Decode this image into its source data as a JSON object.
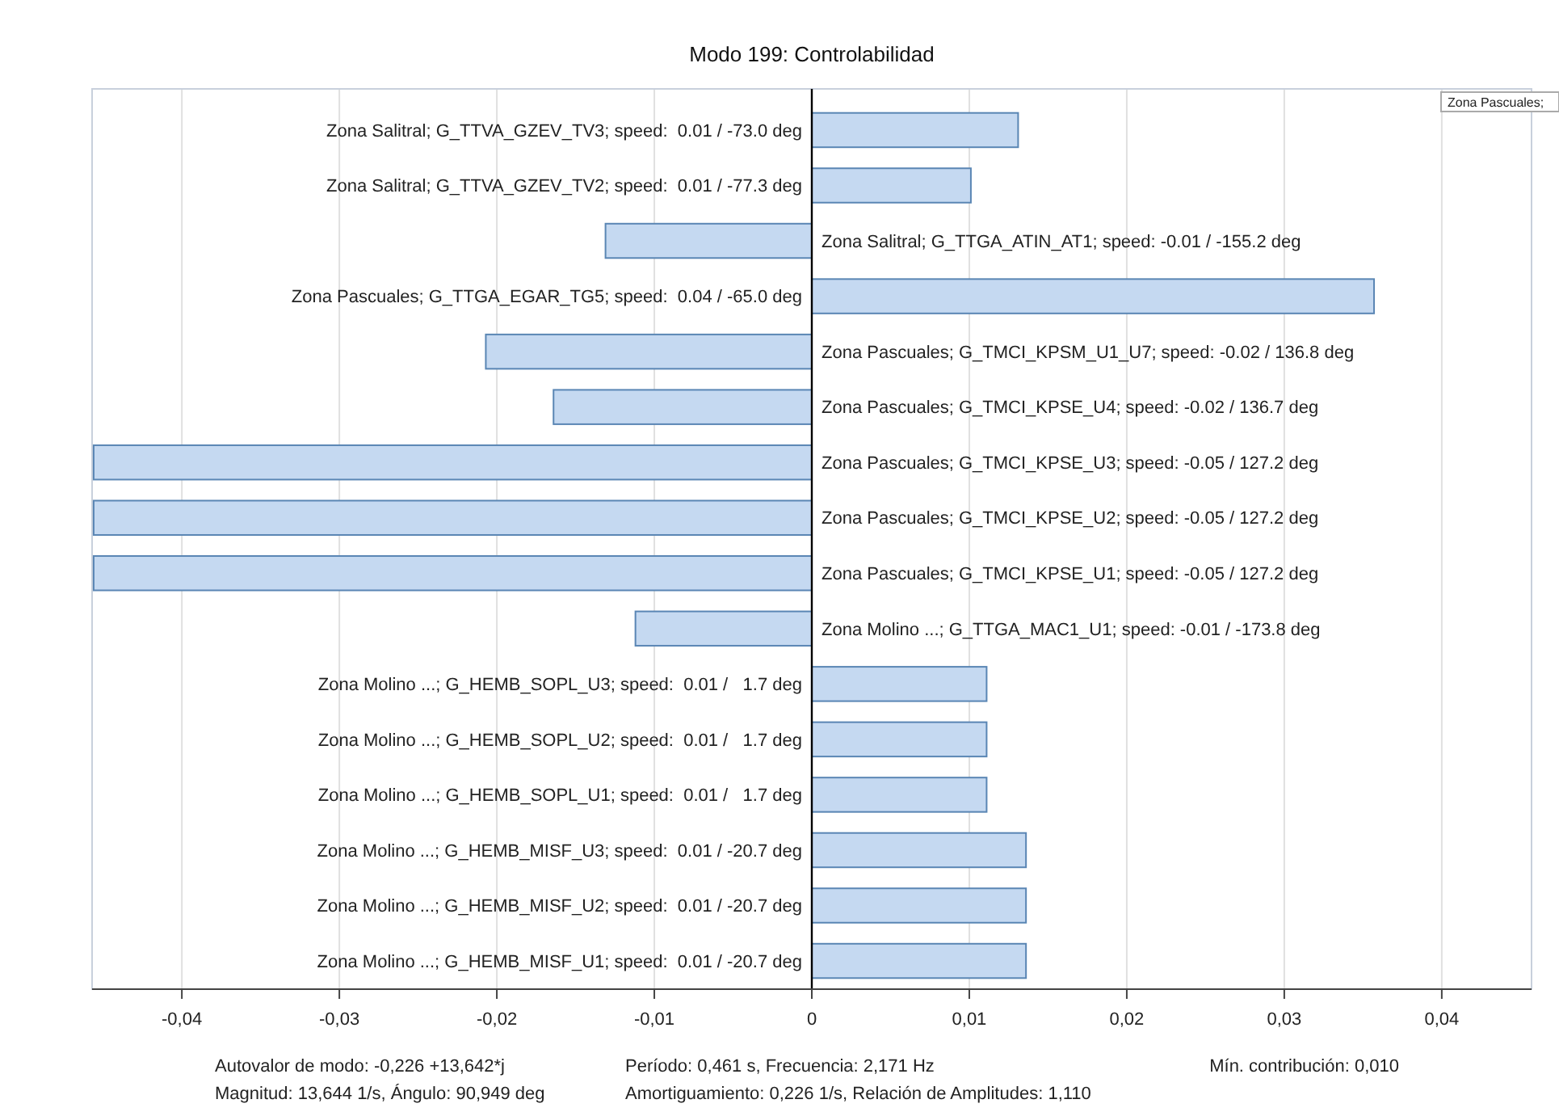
{
  "chart_data": {
    "type": "bar",
    "orientation": "horizontal",
    "title": "Modo 199: Controlabilidad",
    "categories": [
      "Zona Salitral; G_TTVA_GZEV_TV3; speed:  0.01 / -73.0 deg",
      "Zona Salitral; G_TTVA_GZEV_TV2; speed:  0.01 / -77.3 deg",
      "Zona Salitral; G_TTGA_ATIN_AT1; speed: -0.01 / -155.2 deg",
      "Zona Pascuales; G_TTGA_EGAR_TG5; speed:  0.04 / -65.0 deg",
      "Zona Pascuales; G_TMCI_KPSM_U1_U7; speed: -0.02 / 136.8 deg",
      "Zona Pascuales; G_TMCI_KPSE_U4; speed: -0.02 / 136.7 deg",
      "Zona Pascuales; G_TMCI_KPSE_U3; speed: -0.05 / 127.2 deg",
      "Zona Pascuales; G_TMCI_KPSE_U2; speed: -0.05 / 127.2 deg",
      "Zona Pascuales; G_TMCI_KPSE_U1; speed: -0.05 / 127.2 deg",
      "Zona Molino ...; G_TTGA_MAC1_U1; speed: -0.01 / -173.8 deg",
      "Zona Molino ...; G_HEMB_SOPL_U3; speed:  0.01 /   1.7 deg",
      "Zona Molino ...; G_HEMB_SOPL_U2; speed:  0.01 /   1.7 deg",
      "Zona Molino ...; G_HEMB_SOPL_U1; speed:  0.01 /   1.7 deg",
      "Zona Molino ...; G_HEMB_MISF_U3; speed:  0.01 / -20.7 deg",
      "Zona Molino ...; G_HEMB_MISF_U2; speed:  0.01 / -20.7 deg",
      "Zona Molino ...; G_HEMB_MISF_U1; speed:  0.01 / -20.7 deg"
    ],
    "values": [
      0.0131,
      0.0101,
      -0.0131,
      0.0357,
      -0.0207,
      -0.0164,
      -0.0456,
      -0.0456,
      -0.0456,
      -0.0112,
      0.0111,
      0.0111,
      0.0111,
      0.0136,
      0.0136,
      0.0136
    ],
    "color": "#c5d9f1",
    "xlim": [
      -0.0457,
      0.0457
    ],
    "xticks": [
      {
        "value": -0.04,
        "label": "-0,04"
      },
      {
        "value": -0.03,
        "label": "-0,03"
      },
      {
        "value": -0.02,
        "label": "-0,02"
      },
      {
        "value": -0.01,
        "label": "-0,01"
      },
      0,
      {
        "value": 0.01,
        "label": "0,01"
      },
      {
        "value": 0.02,
        "label": "0,02"
      },
      {
        "value": 0.03,
        "label": "0,03"
      },
      {
        "value": 0.04,
        "label": "0,04"
      }
    ],
    "grid": "x",
    "annotations": [
      "Autovalor de modo: -0,226 +13,642*j",
      "Magnitud: 13,644 1/s,  Ángulo: 90,949 deg",
      "Período: 0,461 s,  Frecuencia: 2,171 Hz",
      "Amortiguamiento: 0,226 1/s,  Relación de Amplitudes: 1,110",
      "Mín. contribución: 0,010",
      "Zona Pascuales;"
    ]
  }
}
